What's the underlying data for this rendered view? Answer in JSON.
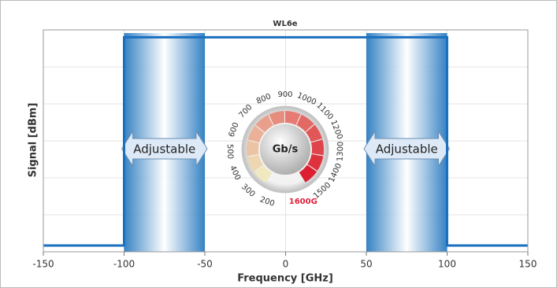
{
  "chart_data": {
    "type": "line",
    "title": "WL6e",
    "x_label": "Frequency [GHz]",
    "y_label": "Signal [dBm]",
    "x": [
      -150,
      -100,
      -100,
      100,
      100,
      150
    ],
    "series": [
      {
        "color": "#1a6fbf",
        "values": [
          0.17,
          0.17,
          5.8,
          5.8,
          0.17,
          0.17
        ]
      }
    ],
    "xlim": [
      -150,
      150
    ],
    "xticks": [
      -150,
      -100,
      -50,
      0,
      50,
      100,
      150
    ],
    "ylim": [
      0,
      6
    ],
    "y_grid_divisions": 6,
    "grid": true,
    "bands": [
      {
        "from": -100,
        "to": -50,
        "label": "Adjustable"
      },
      {
        "from": 50,
        "to": 100,
        "label": "Adjustable"
      }
    ],
    "gauge": {
      "unit": "Gb/s",
      "labels": [
        200,
        300,
        400,
        500,
        600,
        700,
        800,
        900,
        1000,
        1100,
        1200,
        1300,
        1400,
        1500
      ],
      "max_label": "1600G"
    }
  }
}
